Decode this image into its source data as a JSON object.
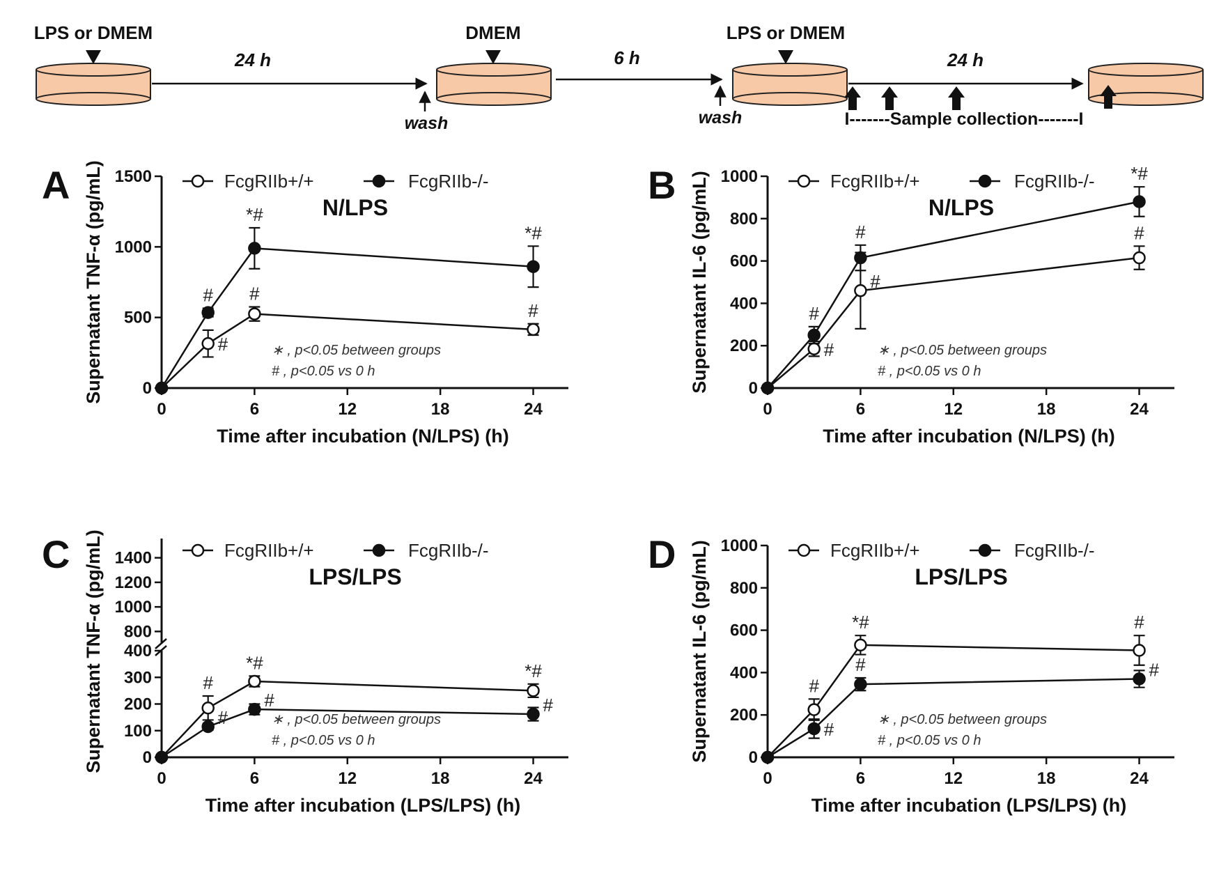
{
  "scheme": {
    "steps": [
      {
        "label": "LPS or DMEM",
        "duration": "24 h",
        "wash": "wash"
      },
      {
        "label": "DMEM",
        "duration": "6 h",
        "wash": "wash"
      },
      {
        "label": "LPS or DMEM",
        "duration": "24 h"
      }
    ],
    "collection": "I-------Sample collection-------I",
    "dish_color": "#f8c9a6"
  },
  "legend": {
    "wt": "FcgRIIb+/+",
    "ko": "FcgRIIb-/-"
  },
  "chart_data": [
    {
      "panel": "A",
      "type": "line",
      "title": "N/LPS",
      "ylabel": "Supernatant TNF-α (pg/mL)",
      "xlabel": "Time after incubation (N/LPS) (h)",
      "xlim": [
        0,
        26
      ],
      "ylim": [
        0,
        1500
      ],
      "xticks": [
        "0",
        "6",
        "12",
        "18",
        "24"
      ],
      "xtick_values": [
        0,
        6,
        12,
        18,
        24
      ],
      "yticks": [
        "0",
        "500",
        "1000",
        "1500"
      ],
      "ytick_values": [
        0,
        500,
        1000,
        1500
      ],
      "series": [
        {
          "name": "FcgRIIb+/+",
          "marker": "open",
          "x": [
            0,
            3,
            6,
            24
          ],
          "y": [
            0,
            315,
            525,
            415
          ],
          "err": [
            0,
            95,
            50,
            40
          ],
          "sig": [
            {
              "x": 3,
              "y": 315,
              "text": "#",
              "pos": "right"
            },
            {
              "x": 6,
              "y": 525,
              "text": "#",
              "pos": "above"
            },
            {
              "x": 24,
              "y": 415,
              "text": "#",
              "pos": "above"
            }
          ]
        },
        {
          "name": "FcgRIIb-/-",
          "marker": "filled",
          "x": [
            0,
            3,
            6,
            24
          ],
          "y": [
            0,
            535,
            990,
            860
          ],
          "err": [
            0,
            30,
            145,
            145
          ],
          "sig": [
            {
              "x": 3,
              "y": 535,
              "text": "#",
              "pos": "above"
            },
            {
              "x": 6,
              "y": 990,
              "text": "*#",
              "pos": "above"
            },
            {
              "x": 24,
              "y": 860,
              "text": "*#",
              "pos": "above"
            }
          ]
        }
      ],
      "notes": [
        "∗ , p<0.05 between groups",
        "# , p<0.05 vs 0 h"
      ]
    },
    {
      "panel": "B",
      "type": "line",
      "title": "N/LPS",
      "ylabel": "Supernatant IL-6 (pg/mL)",
      "xlabel": "Time after incubation (N/LPS) (h)",
      "xlim": [
        0,
        26
      ],
      "ylim": [
        0,
        1000
      ],
      "xticks": [
        "0",
        "6",
        "12",
        "18",
        "24"
      ],
      "xtick_values": [
        0,
        6,
        12,
        18,
        24
      ],
      "yticks": [
        "0",
        "200",
        "400",
        "600",
        "800",
        "1000"
      ],
      "ytick_values": [
        0,
        200,
        400,
        600,
        800,
        1000
      ],
      "series": [
        {
          "name": "FcgRIIb+/+",
          "marker": "open",
          "x": [
            0,
            3,
            6,
            24
          ],
          "y": [
            0,
            185,
            460,
            615
          ],
          "err": [
            0,
            35,
            180,
            55
          ],
          "sig": [
            {
              "x": 3,
              "y": 185,
              "text": "#",
              "pos": "right"
            },
            {
              "x": 6,
              "y": 460,
              "text": "#",
              "pos": "rightup"
            },
            {
              "x": 24,
              "y": 615,
              "text": "#",
              "pos": "above"
            }
          ]
        },
        {
          "name": "FcgRIIb-/-",
          "marker": "filled",
          "x": [
            0,
            3,
            6,
            24
          ],
          "y": [
            0,
            250,
            615,
            880
          ],
          "err": [
            0,
            40,
            60,
            70
          ],
          "sig": [
            {
              "x": 3,
              "y": 250,
              "text": "#",
              "pos": "above"
            },
            {
              "x": 6,
              "y": 615,
              "text": "#",
              "pos": "above"
            },
            {
              "x": 24,
              "y": 880,
              "text": "*#",
              "pos": "above"
            }
          ]
        }
      ],
      "notes": [
        "∗ , p<0.05 between groups",
        "# , p<0.05 vs 0 h"
      ]
    },
    {
      "panel": "C",
      "type": "line",
      "title": "LPS/LPS",
      "ylabel": "Supernatant TNF-α (pg/mL)",
      "xlabel": "Time after incubation (LPS/LPS) (h)",
      "xlim": [
        0,
        26
      ],
      "ylim": [
        0,
        1500
      ],
      "axis_break": [
        400,
        700
      ],
      "xticks": [
        "0",
        "6",
        "12",
        "18",
        "24"
      ],
      "xtick_values": [
        0,
        6,
        12,
        18,
        24
      ],
      "yticks": [
        "0",
        "100",
        "200",
        "300",
        "400",
        "800",
        "1000",
        "1200",
        "1400"
      ],
      "ytick_values": [
        0,
        100,
        200,
        300,
        400,
        800,
        1000,
        1200,
        1400
      ],
      "series": [
        {
          "name": "FcgRIIb+/+",
          "marker": "open",
          "x": [
            0,
            3,
            6,
            24
          ],
          "y": [
            0,
            185,
            285,
            250
          ],
          "err": [
            0,
            45,
            20,
            25
          ],
          "sig": [
            {
              "x": 3,
              "y": 185,
              "text": "#",
              "pos": "above"
            },
            {
              "x": 6,
              "y": 285,
              "text": "*#",
              "pos": "above"
            },
            {
              "x": 24,
              "y": 250,
              "text": "*#",
              "pos": "above"
            }
          ]
        },
        {
          "name": "FcgRIIb-/-",
          "marker": "filled",
          "x": [
            0,
            3,
            6,
            24
          ],
          "y": [
            0,
            115,
            180,
            162
          ],
          "err": [
            0,
            12,
            20,
            25
          ],
          "sig": [
            {
              "x": 3,
              "y": 115,
              "text": "#",
              "pos": "rightup"
            },
            {
              "x": 6,
              "y": 180,
              "text": "#",
              "pos": "rightup"
            },
            {
              "x": 24,
              "y": 162,
              "text": "#",
              "pos": "rightup"
            }
          ]
        }
      ],
      "notes": [
        "∗ , p<0.05 between groups",
        "# , p<0.05 vs 0 h"
      ]
    },
    {
      "panel": "D",
      "type": "line",
      "title": "LPS/LPS",
      "ylabel": "Supernatant IL-6 (pg/mL)",
      "xlabel": "Time after incubation (LPS/LPS) (h)",
      "xlim": [
        0,
        26
      ],
      "ylim": [
        0,
        1000
      ],
      "xticks": [
        "0",
        "6",
        "12",
        "18",
        "24"
      ],
      "xtick_values": [
        0,
        6,
        12,
        18,
        24
      ],
      "yticks": [
        "0",
        "200",
        "400",
        "600",
        "800",
        "1000"
      ],
      "ytick_values": [
        0,
        200,
        400,
        600,
        800,
        1000
      ],
      "series": [
        {
          "name": "FcgRIIb+/+",
          "marker": "open",
          "x": [
            0,
            3,
            6,
            24
          ],
          "y": [
            0,
            225,
            530,
            505
          ],
          "err": [
            0,
            50,
            45,
            70
          ],
          "sig": [
            {
              "x": 3,
              "y": 225,
              "text": "#",
              "pos": "above"
            },
            {
              "x": 6,
              "y": 530,
              "text": "*#",
              "pos": "above"
            },
            {
              "x": 24,
              "y": 505,
              "text": "#",
              "pos": "above"
            }
          ]
        },
        {
          "name": "FcgRIIb-/-",
          "marker": "filled",
          "x": [
            0,
            3,
            6,
            24
          ],
          "y": [
            0,
            135,
            345,
            370
          ],
          "err": [
            0,
            45,
            30,
            40
          ],
          "sig": [
            {
              "x": 3,
              "y": 135,
              "text": "#",
              "pos": "right"
            },
            {
              "x": 6,
              "y": 345,
              "text": "#",
              "pos": "above"
            },
            {
              "x": 24,
              "y": 370,
              "text": "#",
              "pos": "rightup"
            }
          ]
        }
      ],
      "notes": [
        "∗ , p<0.05 between groups",
        "# , p<0.05 vs 0 h"
      ]
    }
  ]
}
